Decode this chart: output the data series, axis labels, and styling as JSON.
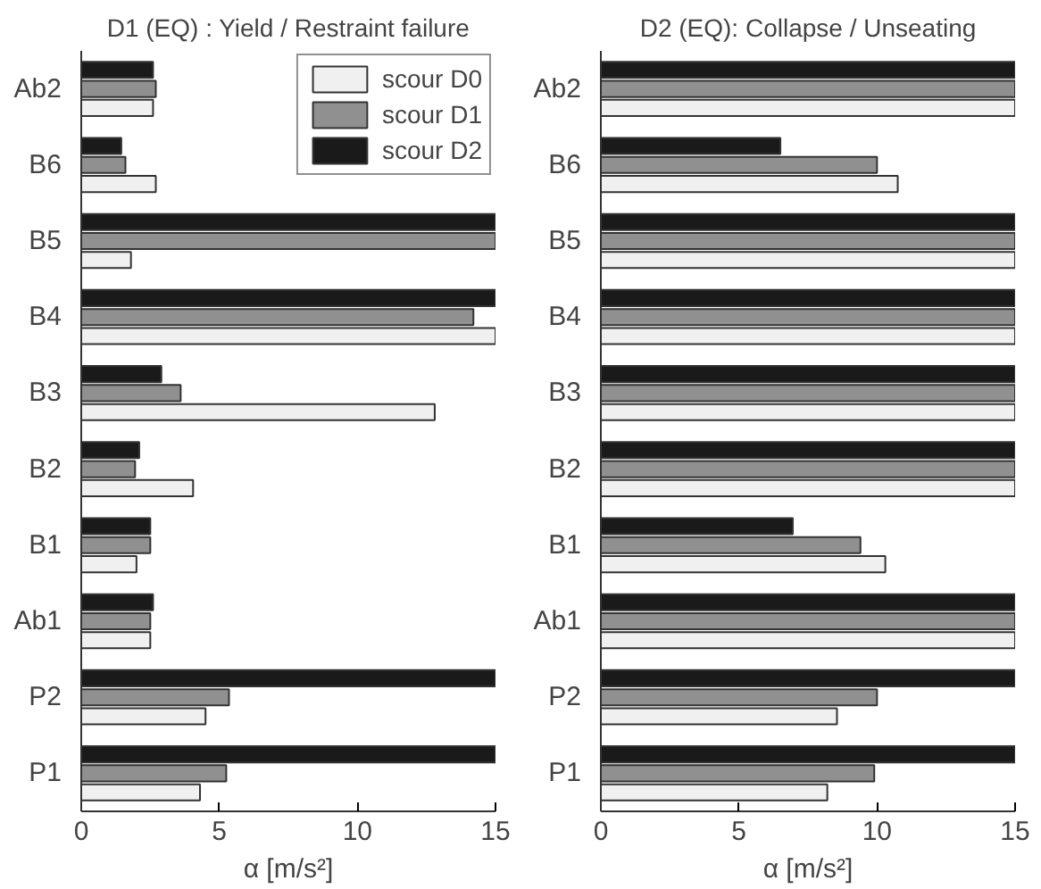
{
  "chart_data": [
    {
      "type": "bar",
      "orientation": "horizontal",
      "title": "D1 (EQ) : Yield / Restraint failure",
      "xlabel": "α [m/s²]",
      "categories": [
        "Ab2",
        "B6",
        "B5",
        "B4",
        "B3",
        "B2",
        "B1",
        "Ab1",
        "P2",
        "P1"
      ],
      "xlim": [
        0,
        15
      ],
      "xticks": [
        0,
        5,
        10,
        15
      ],
      "grid": false,
      "legend": "top right",
      "series": [
        {
          "name": "scour D2",
          "color": "#1a1a1a",
          "values": [
            2.6,
            1.45,
            15,
            15,
            2.9,
            2.1,
            2.5,
            2.6,
            15,
            15
          ]
        },
        {
          "name": "scour D1",
          "color": "#909090",
          "values": [
            2.7,
            1.6,
            15,
            14.2,
            3.6,
            1.95,
            2.5,
            2.5,
            5.35,
            5.25
          ]
        },
        {
          "name": "scour D0",
          "color": "#f0f0f0",
          "values": [
            2.6,
            2.7,
            1.8,
            15,
            12.8,
            4.05,
            2.0,
            2.5,
            4.5,
            4.3
          ]
        }
      ]
    },
    {
      "type": "bar",
      "orientation": "horizontal",
      "title": "D2 (EQ): Collapse / Unseating",
      "xlabel": "α [m/s²]",
      "categories": [
        "Ab2",
        "B6",
        "B5",
        "B4",
        "B3",
        "B2",
        "B1",
        "Ab1",
        "P2",
        "P1"
      ],
      "xlim": [
        0,
        15
      ],
      "xticks": [
        0,
        5,
        10,
        15
      ],
      "grid": false,
      "series": [
        {
          "color": "#1a1a1a",
          "values": [
            15,
            6.5,
            15,
            15,
            15,
            15,
            6.95,
            15,
            15,
            15
          ]
        },
        {
          "color": "#909090",
          "values": [
            15,
            10.0,
            15,
            15,
            15,
            15,
            9.4,
            15,
            10.0,
            9.9
          ]
        },
        {
          "color": "#f0f0f0",
          "values": [
            15,
            10.75,
            15,
            15,
            15,
            15,
            10.3,
            15,
            8.55,
            8.2
          ]
        }
      ]
    }
  ]
}
